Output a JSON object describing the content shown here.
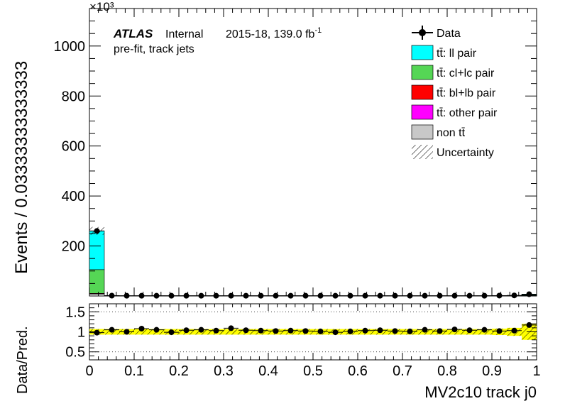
{
  "chart_data": {
    "type": "bar",
    "stacked": true,
    "xlabel": "MV2c10 track j0",
    "ylabel": "Events / 0.03333333333333",
    "ratio_ylabel": "Data/Pred.",
    "exponent_label": "×10³",
    "xlim": [
      0,
      1
    ],
    "ylim": [
      0,
      1150
    ],
    "ratio_ylim": [
      0.3,
      1.7
    ],
    "x_ticks": [
      "0",
      "0.1",
      "0.2",
      "0.3",
      "0.4",
      "0.5",
      "0.6",
      "0.7",
      "0.8",
      "0.9",
      "1"
    ],
    "y_ticks": [
      "200",
      "400",
      "600",
      "800",
      "1000"
    ],
    "ratio_y_ticks": [
      "0.5",
      "1",
      "1.5"
    ],
    "annotations": {
      "atlas": "ATLAS",
      "status": "Internal",
      "lumi": "2015-18, 139.0 fb",
      "lumi_sup": "-1",
      "selection": "pre-fit, track jets"
    },
    "legend": [
      {
        "label": "Data",
        "type": "marker",
        "color": "#000000"
      },
      {
        "label": "tt̄: ll pair",
        "type": "box",
        "color": "#00ffff"
      },
      {
        "label": "tt̄: cl+lc pair",
        "type": "box",
        "color": "#55d655"
      },
      {
        "label": "tt̄: bl+lb pair",
        "type": "box",
        "color": "#ff0000"
      },
      {
        "label": "tt̄: other pair",
        "type": "box",
        "color": "#ff00ff"
      },
      {
        "label": "non tt̄",
        "type": "box",
        "color": "#c8c8c8"
      },
      {
        "label": "Uncertainty",
        "type": "hatch",
        "color": "#000000"
      }
    ],
    "legend_position": "top-right",
    "bins": 30,
    "series": [
      {
        "name": "tt̄: ll pair",
        "color": "#00ffff",
        "values": [
          155,
          0.5,
          0.3,
          0.3,
          0.3,
          0.3,
          0.3,
          0.3,
          0.3,
          0.3,
          0.3,
          0.3,
          0.3,
          0.3,
          0.3,
          0.3,
          0.3,
          0.3,
          0.3,
          0.3,
          0.3,
          0.3,
          0.3,
          0.3,
          0.3,
          0.3,
          0.3,
          0.4,
          0.6,
          2
        ]
      },
      {
        "name": "tt̄: cl+lc pair",
        "color": "#55d655",
        "values": [
          95,
          0.3,
          0.2,
          0.2,
          0.2,
          0.2,
          0.2,
          0.2,
          0.2,
          0.2,
          0.2,
          0.2,
          0.2,
          0.2,
          0.2,
          0.2,
          0.2,
          0.2,
          0.2,
          0.2,
          0.2,
          0.2,
          0.2,
          0.2,
          0.2,
          0.2,
          0.3,
          0.4,
          0.6,
          2
        ]
      },
      {
        "name": "tt̄: bl+lb pair",
        "color": "#ff0000",
        "values": [
          2,
          0.1,
          0.1,
          0.1,
          0.1,
          0.1,
          0.1,
          0.1,
          0.1,
          0.1,
          0.1,
          0.1,
          0.1,
          0.1,
          0.1,
          0.1,
          0.1,
          0.1,
          0.1,
          0.1,
          0.1,
          0.1,
          0.1,
          0.1,
          0.1,
          0.1,
          0.1,
          0.2,
          0.3,
          1
        ]
      },
      {
        "name": "tt̄: other pair",
        "color": "#ff00ff",
        "values": [
          0.5,
          0.1,
          0.1,
          0.1,
          0.1,
          0.1,
          0.1,
          0.1,
          0.1,
          0.1,
          0.1,
          0.1,
          0.1,
          0.1,
          0.1,
          0.1,
          0.1,
          0.1,
          0.1,
          0.1,
          0.1,
          0.1,
          0.1,
          0.1,
          0.1,
          0.1,
          0.1,
          0.1,
          0.2,
          0.5
        ]
      },
      {
        "name": "non tt̄",
        "color": "#c8c8c8",
        "values": [
          8,
          0.3,
          0.2,
          0.2,
          0.2,
          0.2,
          0.2,
          0.2,
          0.2,
          0.2,
          0.2,
          0.2,
          0.2,
          0.2,
          0.2,
          0.2,
          0.2,
          0.2,
          0.2,
          0.2,
          0.2,
          0.2,
          0.2,
          0.2,
          0.2,
          0.2,
          0.2,
          0.3,
          0.4,
          1
        ]
      }
    ],
    "data_points": [
      260,
      1.3,
      1.0,
      1.0,
      0.9,
      0.9,
      0.9,
      0.9,
      0.9,
      0.9,
      0.9,
      0.9,
      0.9,
      0.9,
      0.9,
      0.9,
      0.9,
      0.9,
      0.9,
      0.9,
      0.9,
      0.9,
      0.9,
      0.9,
      0.9,
      0.9,
      1.0,
      1.5,
      2.2,
      7
    ],
    "ratio_values": [
      0.98,
      1.05,
      1.0,
      1.08,
      1.05,
      0.99,
      1.04,
      1.05,
      1.03,
      1.09,
      1.04,
      1.03,
      1.02,
      1.03,
      1.02,
      1.01,
      0.99,
      1.01,
      1.03,
      1.04,
      1.02,
      1.01,
      1.05,
      1.02,
      1.06,
      1.04,
      1.05,
      1.02,
      1.03,
      1.17
    ],
    "ratio_band": [
      0.07,
      0.07,
      0.07,
      0.07,
      0.07,
      0.07,
      0.07,
      0.07,
      0.07,
      0.07,
      0.07,
      0.07,
      0.07,
      0.07,
      0.07,
      0.07,
      0.07,
      0.07,
      0.07,
      0.07,
      0.07,
      0.07,
      0.07,
      0.07,
      0.07,
      0.07,
      0.07,
      0.08,
      0.1,
      0.2
    ]
  }
}
